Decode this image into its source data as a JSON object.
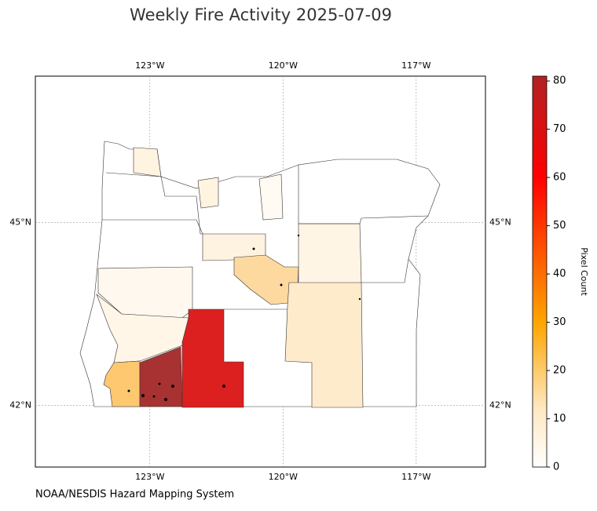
{
  "map": {
    "title": "Weekly Fire Activity 2025-07-09",
    "xlim": [
      -125.58,
      -115.44
    ],
    "ylim": [
      40.99,
      47.4
    ],
    "xticks": [
      {
        "value": -123,
        "label": "123°W"
      },
      {
        "value": -120,
        "label": "120°W"
      },
      {
        "value": -117,
        "label": "117°W"
      }
    ],
    "yticks": [
      {
        "value": 45,
        "label": "45°N"
      },
      {
        "value": 42,
        "label": "42°N"
      }
    ],
    "grid": true,
    "colorbar": {
      "label": "Pixel Count",
      "lim": [
        0,
        81
      ],
      "ticks": [
        0,
        10,
        20,
        30,
        40,
        50,
        60,
        70,
        80
      ]
    },
    "credit": "NOAA/NESDIS Hazard Mapping System"
  }
}
